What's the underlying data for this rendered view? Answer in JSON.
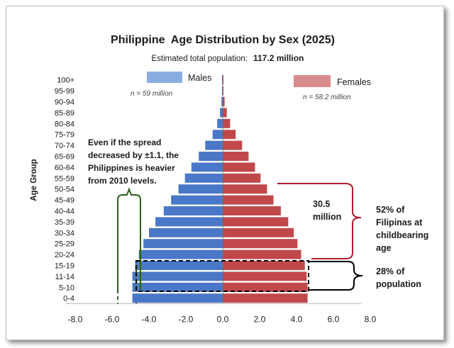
{
  "chart_data": {
    "type": "bar",
    "orientation": "horizontal-pyramid",
    "title": "Philippine  Age Distribution by Sex (2025)",
    "subtitle_label": "Estimated total population:",
    "subtitle_value": "117.2 million",
    "ylabel": "Age Group",
    "xlim": [
      -8.0,
      8.0
    ],
    "xticks": [
      "-8.0",
      "-6.0",
      "-4.0",
      "-2.0",
      "0.0",
      "2.0",
      "4.0",
      "6.0",
      "8.0"
    ],
    "categories": [
      "0-4",
      "5-10",
      "11-14",
      "15-19",
      "20-24",
      "25-29",
      "30-34",
      "35-39",
      "40-44",
      "45-49",
      "50-54",
      "55-59",
      "60-64",
      "65-69",
      "70-74",
      "75-79",
      "80-84",
      "85-89",
      "90-94",
      "95-99",
      "100+"
    ],
    "series": [
      {
        "name": "Males",
        "note": "n = 59 million",
        "color": "#4a78c8",
        "values": [
          -4.9,
          -4.9,
          -4.9,
          -4.75,
          -4.55,
          -4.3,
          -4.0,
          -3.65,
          -3.2,
          -2.8,
          -2.4,
          -2.05,
          -1.7,
          -1.3,
          -0.95,
          -0.55,
          -0.3,
          -0.15,
          -0.07,
          -0.03,
          -0.01
        ]
      },
      {
        "name": "Females",
        "note": "n = 58.2 million",
        "color": "#c0484b",
        "values": [
          4.6,
          4.6,
          4.55,
          4.45,
          4.25,
          4.05,
          3.85,
          3.55,
          3.15,
          2.75,
          2.4,
          2.05,
          1.75,
          1.4,
          1.05,
          0.7,
          0.4,
          0.22,
          0.1,
          0.04,
          0.01
        ]
      }
    ],
    "annotations": {
      "spread_text": [
        "Even if the spread",
        "decreased by ±1.1, the",
        "Philippines is heavier",
        "from 2010 levels."
      ],
      "million_text": [
        "30.5",
        "million"
      ],
      "childbearing_text": [
        "52% of",
        "Filipinas at",
        "childbearing",
        "age"
      ],
      "youth_text": [
        "28% of",
        "population"
      ]
    },
    "colors": {
      "male": "#4a78c8",
      "female": "#c0484b",
      "male_legend": "#8aaee0",
      "female_legend": "#d98c8e",
      "green_bracket": "#2e5e1e",
      "red_bracket": "#b01c2e"
    }
  }
}
